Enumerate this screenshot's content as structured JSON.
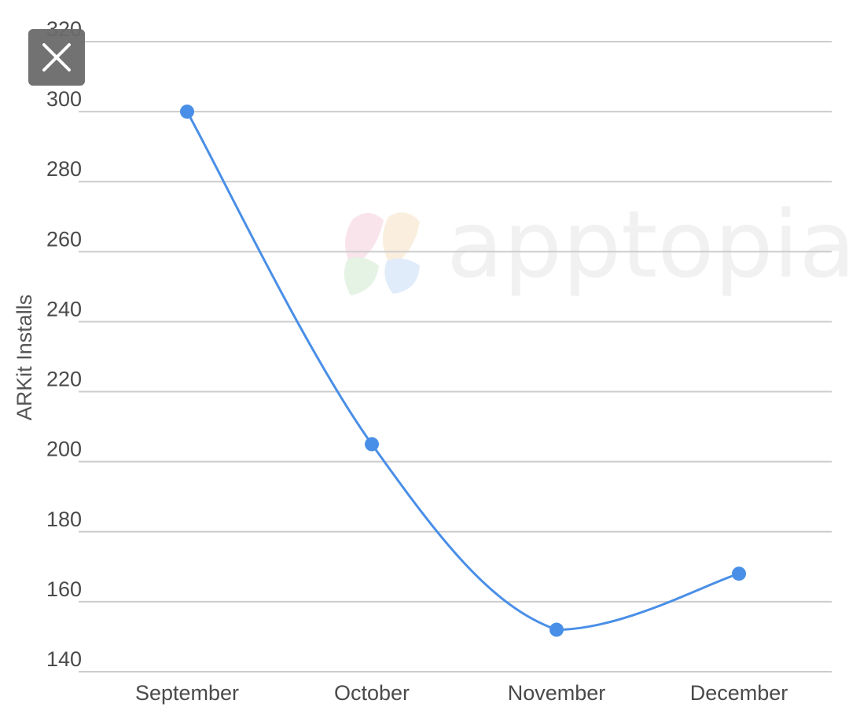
{
  "watermark": {
    "text": "apptopia",
    "icon": "apptopia-logo-icon"
  },
  "overlay": {
    "close_icon": "close-icon"
  },
  "chart_data": {
    "type": "line",
    "categories": [
      "September",
      "October",
      "November",
      "December"
    ],
    "series": [
      {
        "values": [
          300,
          205,
          152,
          168
        ],
        "color": "#4a8fe7"
      }
    ],
    "ylabel": "ARKit Installs",
    "xlabel": "",
    "ylim": [
      140,
      320
    ],
    "yticks": [
      140,
      160,
      180,
      200,
      220,
      240,
      260,
      280,
      300,
      320
    ],
    "grid": true,
    "smooth": true,
    "legend": "none",
    "gridline_color": "#cccccc"
  }
}
